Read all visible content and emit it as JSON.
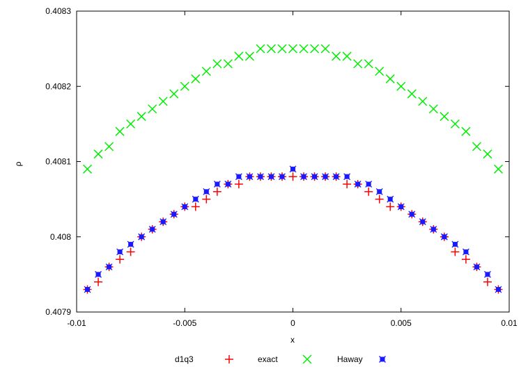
{
  "chart_data": {
    "type": "scatter",
    "xlabel": "x",
    "ylabel": "ρ",
    "xlim": [
      -0.01,
      0.01
    ],
    "ylim": [
      0.4079,
      0.4083
    ],
    "xticks": [
      {
        "value": -0.01,
        "label": "-0.01"
      },
      {
        "value": -0.005,
        "label": "-0.005"
      },
      {
        "value": 0,
        "label": "0"
      },
      {
        "value": 0.005,
        "label": "0.005"
      },
      {
        "value": 0.01,
        "label": "0.01"
      }
    ],
    "yticks": [
      {
        "value": 0.4079,
        "label": "0.4079"
      },
      {
        "value": 0.408,
        "label": "0.408"
      },
      {
        "value": 0.4081,
        "label": "0.4081"
      },
      {
        "value": 0.4082,
        "label": "0.4082"
      },
      {
        "value": 0.4083,
        "label": "0.4083"
      }
    ],
    "legend_position": "bottom",
    "x": [
      -0.0095,
      -0.009,
      -0.0085,
      -0.008,
      -0.0075,
      -0.007,
      -0.0065,
      -0.006,
      -0.0055,
      -0.005,
      -0.0045,
      -0.004,
      -0.0035,
      -0.003,
      -0.0025,
      -0.002,
      -0.0015,
      -0.001,
      -0.0005,
      0.0,
      0.0005,
      0.001,
      0.0015,
      0.002,
      0.0025,
      0.003,
      0.0035,
      0.004,
      0.0045,
      0.005,
      0.0055,
      0.006,
      0.0065,
      0.007,
      0.0075,
      0.008,
      0.0085,
      0.009,
      0.0095
    ],
    "series": [
      {
        "name": "d1q3",
        "marker": "plus",
        "color": "#ff0000",
        "values": [
          0.40793,
          0.40794,
          0.40796,
          0.40797,
          0.40798,
          0.408,
          0.40801,
          0.40802,
          0.40803,
          0.40804,
          0.40804,
          0.40805,
          0.40806,
          0.40807,
          0.40807,
          0.40808,
          0.40808,
          0.40808,
          0.40808,
          0.40808,
          0.40808,
          0.40808,
          0.40808,
          0.40808,
          0.40807,
          0.40807,
          0.40806,
          0.40805,
          0.40804,
          0.40804,
          0.40803,
          0.40802,
          0.40801,
          0.408,
          0.40798,
          0.40797,
          0.40796,
          0.40794,
          0.40793
        ]
      },
      {
        "name": "exact",
        "marker": "cross",
        "color": "#00ee00",
        "values": [
          0.40809,
          0.40811,
          0.40812,
          0.40814,
          0.40815,
          0.40816,
          0.40817,
          0.40818,
          0.40819,
          0.4082,
          0.40821,
          0.40822,
          0.40823,
          0.40823,
          0.40824,
          0.40824,
          0.40825,
          0.40825,
          0.40825,
          0.40825,
          0.40825,
          0.40825,
          0.40825,
          0.40824,
          0.40824,
          0.40823,
          0.40823,
          0.40822,
          0.40821,
          0.4082,
          0.40819,
          0.40818,
          0.40817,
          0.40816,
          0.40815,
          0.40814,
          0.40812,
          0.40811,
          0.40809
        ]
      },
      {
        "name": "Haway",
        "marker": "star",
        "color": "#1a1aff",
        "values": [
          0.40793,
          0.40795,
          0.40796,
          0.40798,
          0.40799,
          0.408,
          0.40801,
          0.40802,
          0.40803,
          0.40804,
          0.40805,
          0.40806,
          0.40807,
          0.40807,
          0.40808,
          0.40808,
          0.40808,
          0.40808,
          0.40808,
          0.40809,
          0.40808,
          0.40808,
          0.40808,
          0.40808,
          0.40808,
          0.40807,
          0.40807,
          0.40806,
          0.40805,
          0.40804,
          0.40803,
          0.40802,
          0.40801,
          0.408,
          0.40799,
          0.40798,
          0.40796,
          0.40795,
          0.40793
        ]
      }
    ]
  }
}
